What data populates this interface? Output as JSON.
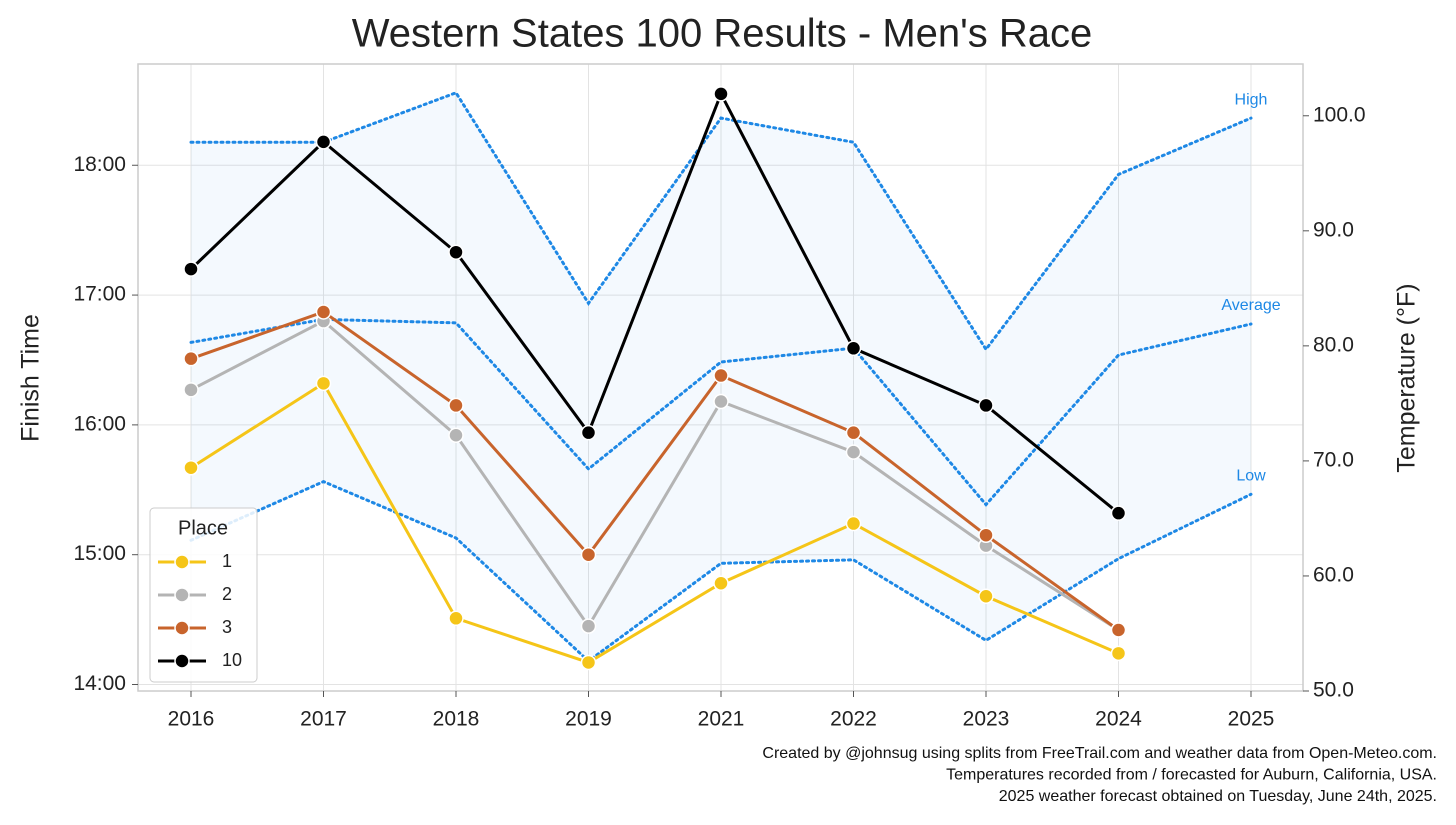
{
  "chart_data": {
    "type": "line",
    "title": "Western States 100 Results - Men's Race",
    "ylabel": "Finish Time",
    "y2label": "Temperature (°F)",
    "categories": [
      "2016",
      "2017",
      "2018",
      "2019",
      "2021",
      "2022",
      "2023",
      "2024",
      "2025"
    ],
    "ylim": [
      13.95,
      18.78
    ],
    "yticks": [
      {
        "value": 14,
        "label": "14:00"
      },
      {
        "value": 15,
        "label": "15:00"
      },
      {
        "value": 16,
        "label": "16:00"
      },
      {
        "value": 17,
        "label": "17:00"
      },
      {
        "value": 18,
        "label": "18:00"
      }
    ],
    "y2lim": [
      50,
      104.5
    ],
    "y2ticks": [
      {
        "value": 50,
        "label": "50.0"
      },
      {
        "value": 60,
        "label": "60.0"
      },
      {
        "value": 70,
        "label": "70.0"
      },
      {
        "value": 80,
        "label": "80.0"
      },
      {
        "value": 90,
        "label": "90.0"
      },
      {
        "value": 100,
        "label": "100.0"
      }
    ],
    "grid": true,
    "legend": "lower left",
    "legend_title": "Place",
    "series": [
      {
        "name": "1",
        "color": "#f5c518",
        "values": [
          15.67,
          16.32,
          14.51,
          14.17,
          14.78,
          15.24,
          14.68,
          14.24,
          null
        ]
      },
      {
        "name": "2",
        "color": "#b4b4b4",
        "values": [
          16.27,
          16.8,
          15.92,
          14.45,
          16.18,
          15.79,
          15.07,
          14.42,
          null
        ]
      },
      {
        "name": "3",
        "color": "#c8642c",
        "values": [
          16.51,
          16.87,
          16.15,
          15.0,
          16.38,
          15.94,
          15.15,
          14.42,
          null
        ]
      },
      {
        "name": "10",
        "color": "#000000",
        "values": [
          17.2,
          18.18,
          17.33,
          15.94,
          18.55,
          16.59,
          16.15,
          15.32,
          null
        ]
      }
    ],
    "temperature_series": [
      {
        "name": "High",
        "color": "#1e88e5",
        "axis": "y2",
        "values": [
          97.7,
          97.7,
          102.0,
          83.7,
          99.8,
          97.7,
          79.7,
          94.9,
          99.8
        ]
      },
      {
        "name": "Average",
        "color": "#1e88e5",
        "axis": "y2",
        "values": [
          80.3,
          82.3,
          82.0,
          69.3,
          78.6,
          79.8,
          66.2,
          79.2,
          81.9
        ]
      },
      {
        "name": "Low",
        "color": "#1e88e5",
        "axis": "y2",
        "values": [
          63.1,
          68.2,
          63.3,
          52.6,
          61.1,
          61.4,
          54.4,
          61.5,
          67.1
        ]
      }
    ],
    "footnote": [
      "Created by @johnsug using splits from FreeTrail.com and weather data from Open-Meteo.com.",
      "Temperatures recorded from / forecasted for Auburn, California, USA.",
      "2025 weather forecast obtained on Tuesday, June 24th, 2025."
    ]
  }
}
